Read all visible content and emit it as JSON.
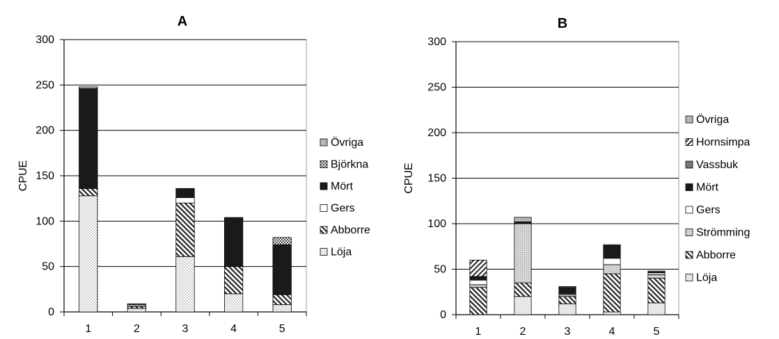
{
  "chart_data": [
    {
      "type": "bar",
      "stacked": true,
      "title": "A",
      "ylabel": "CPUE",
      "xlabel": "",
      "ylim": [
        0,
        300
      ],
      "yticks": [
        0,
        50,
        100,
        150,
        200,
        250,
        300
      ],
      "categories": [
        "1",
        "2",
        "3",
        "4",
        "5"
      ],
      "grid": true,
      "legend_position": "right",
      "series": [
        {
          "name": "Löja",
          "pattern": "dots",
          "values": [
            128,
            4,
            61,
            20,
            8
          ]
        },
        {
          "name": "Abborre",
          "pattern": "diag",
          "values": [
            8,
            2,
            59,
            30,
            11
          ]
        },
        {
          "name": "Gers",
          "pattern": "white",
          "values": [
            0,
            0,
            6,
            0,
            0
          ]
        },
        {
          "name": "Mört",
          "pattern": "dark",
          "values": [
            110,
            0,
            10,
            54,
            55
          ]
        },
        {
          "name": "Björkna",
          "pattern": "checker",
          "values": [
            0,
            2,
            0,
            0,
            8
          ]
        },
        {
          "name": "Övriga",
          "pattern": "gray",
          "values": [
            2,
            1,
            0,
            0,
            0
          ]
        }
      ]
    },
    {
      "type": "bar",
      "stacked": true,
      "title": "B",
      "ylabel": "CPUE",
      "xlabel": "",
      "ylim": [
        0,
        300
      ],
      "yticks": [
        0,
        50,
        100,
        150,
        200,
        250,
        300
      ],
      "categories": [
        "1",
        "2",
        "3",
        "4",
        "5"
      ],
      "grid": true,
      "legend_position": "right",
      "series": [
        {
          "name": "Löja",
          "pattern": "dots",
          "values": [
            0,
            20,
            12,
            3,
            13
          ]
        },
        {
          "name": "Abborre",
          "pattern": "diag",
          "values": [
            30,
            15,
            8,
            42,
            27
          ]
        },
        {
          "name": "Strömming",
          "pattern": "lightgray",
          "values": [
            3,
            65,
            2,
            10,
            4
          ]
        },
        {
          "name": "Gers",
          "pattern": "white",
          "values": [
            5,
            0,
            1,
            7,
            2
          ]
        },
        {
          "name": "Mört",
          "pattern": "dark",
          "values": [
            4,
            2,
            7,
            14,
            1
          ]
        },
        {
          "name": "Vassbuk",
          "pattern": "crosshatch",
          "values": [
            0,
            0,
            0,
            0,
            0
          ]
        },
        {
          "name": "Hornsimpa",
          "pattern": "revdiag",
          "values": [
            18,
            0,
            0,
            0,
            0
          ]
        },
        {
          "name": "Övriga",
          "pattern": "gray",
          "values": [
            0,
            5,
            1,
            1,
            1
          ]
        }
      ]
    }
  ],
  "legends": {
    "A": [
      "Övriga",
      "Björkna",
      "Mört",
      "Gers",
      "Abborre",
      "Löja"
    ],
    "B": [
      "Övriga",
      "Hornsimpa",
      "Vassbuk",
      "Mört",
      "Gers",
      "Strömming",
      "Abborre",
      "Löja"
    ]
  }
}
